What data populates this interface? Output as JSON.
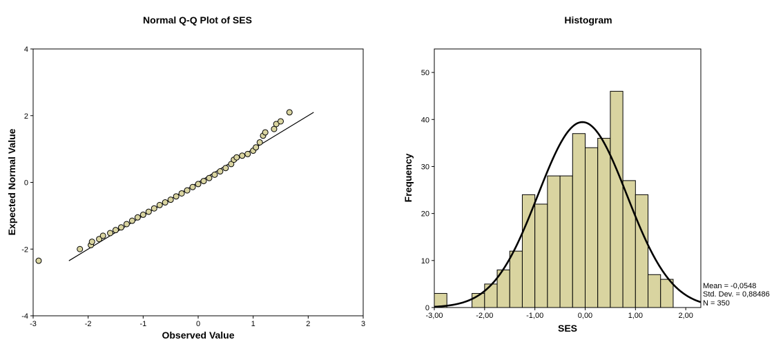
{
  "chart_data": [
    {
      "type": "scatter",
      "title": "Normal Q-Q Plot of SES",
      "xlabel": "Observed Value",
      "ylabel": "Expected Normal Value",
      "xlim": [
        -3,
        3
      ],
      "ylim": [
        -4,
        4
      ],
      "xticks": [
        -3,
        -2,
        -1,
        0,
        1,
        2,
        3
      ],
      "yticks": [
        -4,
        -2,
        0,
        2,
        4
      ],
      "xtick_labels": [
        "-3",
        "-2",
        "-1",
        "0",
        "1",
        "2",
        "3"
      ],
      "ytick_labels": [
        "-4",
        "-2",
        "0",
        "2",
        "4"
      ],
      "reference_line": {
        "x": [
          -2.35,
          2.1
        ],
        "y": [
          -2.35,
          2.1
        ]
      },
      "marker_color": "#d9d4a0",
      "points": [
        {
          "x": -2.9,
          "y": -2.35
        },
        {
          "x": -2.15,
          "y": -2.0
        },
        {
          "x": -1.95,
          "y": -1.88
        },
        {
          "x": -1.93,
          "y": -1.78
        },
        {
          "x": -1.8,
          "y": -1.7
        },
        {
          "x": -1.73,
          "y": -1.6
        },
        {
          "x": -1.6,
          "y": -1.52
        },
        {
          "x": -1.5,
          "y": -1.43
        },
        {
          "x": -1.4,
          "y": -1.35
        },
        {
          "x": -1.3,
          "y": -1.25
        },
        {
          "x": -1.2,
          "y": -1.15
        },
        {
          "x": -1.1,
          "y": -1.05
        },
        {
          "x": -1.0,
          "y": -0.97
        },
        {
          "x": -0.9,
          "y": -0.88
        },
        {
          "x": -0.8,
          "y": -0.78
        },
        {
          "x": -0.7,
          "y": -0.68
        },
        {
          "x": -0.6,
          "y": -0.6
        },
        {
          "x": -0.5,
          "y": -0.52
        },
        {
          "x": -0.4,
          "y": -0.42
        },
        {
          "x": -0.3,
          "y": -0.33
        },
        {
          "x": -0.2,
          "y": -0.24
        },
        {
          "x": -0.1,
          "y": -0.14
        },
        {
          "x": 0.0,
          "y": -0.05
        },
        {
          "x": 0.1,
          "y": 0.04
        },
        {
          "x": 0.2,
          "y": 0.13
        },
        {
          "x": 0.3,
          "y": 0.23
        },
        {
          "x": 0.4,
          "y": 0.33
        },
        {
          "x": 0.5,
          "y": 0.43
        },
        {
          "x": 0.6,
          "y": 0.55
        },
        {
          "x": 0.65,
          "y": 0.68
        },
        {
          "x": 0.7,
          "y": 0.75
        },
        {
          "x": 0.8,
          "y": 0.8
        },
        {
          "x": 0.9,
          "y": 0.85
        },
        {
          "x": 1.0,
          "y": 0.95
        },
        {
          "x": 1.05,
          "y": 1.05
        },
        {
          "x": 1.12,
          "y": 1.2
        },
        {
          "x": 1.18,
          "y": 1.4
        },
        {
          "x": 1.22,
          "y": 1.5
        },
        {
          "x": 1.38,
          "y": 1.6
        },
        {
          "x": 1.42,
          "y": 1.75
        },
        {
          "x": 1.5,
          "y": 1.83
        },
        {
          "x": 1.66,
          "y": 2.1
        }
      ]
    },
    {
      "type": "bar",
      "title": "Histogram",
      "xlabel": "SES",
      "ylabel": "Frequency",
      "xlim": [
        -3.0,
        2.3
      ],
      "ylim": [
        0,
        55
      ],
      "xticks": [
        -3,
        -2,
        -1,
        0,
        1,
        2
      ],
      "xtick_labels": [
        "-3,00",
        "-2,00",
        "-1,00",
        "0,00",
        "1,00",
        "2,00"
      ],
      "yticks": [
        0,
        10,
        20,
        30,
        40,
        50
      ],
      "ytick_labels": [
        "0",
        "10",
        "20",
        "30",
        "40",
        "50"
      ],
      "bar_color": "#d9d4a0",
      "bin_width": 0.25,
      "bins": [
        {
          "start": -3.0,
          "value": 3
        },
        {
          "start": -2.25,
          "value": 3
        },
        {
          "start": -2.0,
          "value": 5
        },
        {
          "start": -1.75,
          "value": 8
        },
        {
          "start": -1.5,
          "value": 12
        },
        {
          "start": -1.25,
          "value": 24
        },
        {
          "start": -1.0,
          "value": 22
        },
        {
          "start": -0.75,
          "value": 28
        },
        {
          "start": -0.5,
          "value": 28
        },
        {
          "start": -0.25,
          "value": 37
        },
        {
          "start": 0.0,
          "value": 34
        },
        {
          "start": 0.25,
          "value": 36
        },
        {
          "start": 0.5,
          "value": 46
        },
        {
          "start": 0.75,
          "value": 27
        },
        {
          "start": 1.0,
          "value": 24
        },
        {
          "start": 1.25,
          "value": 7
        },
        {
          "start": 1.5,
          "value": 6
        }
      ],
      "normal_curve": {
        "mean": -0.0548,
        "sd": 0.88486,
        "n": 350
      },
      "stats": {
        "mean_text": "Mean = -0,0548",
        "sd_text": "Std. Dev. = 0,88486",
        "n_text": "N = 350"
      }
    }
  ]
}
